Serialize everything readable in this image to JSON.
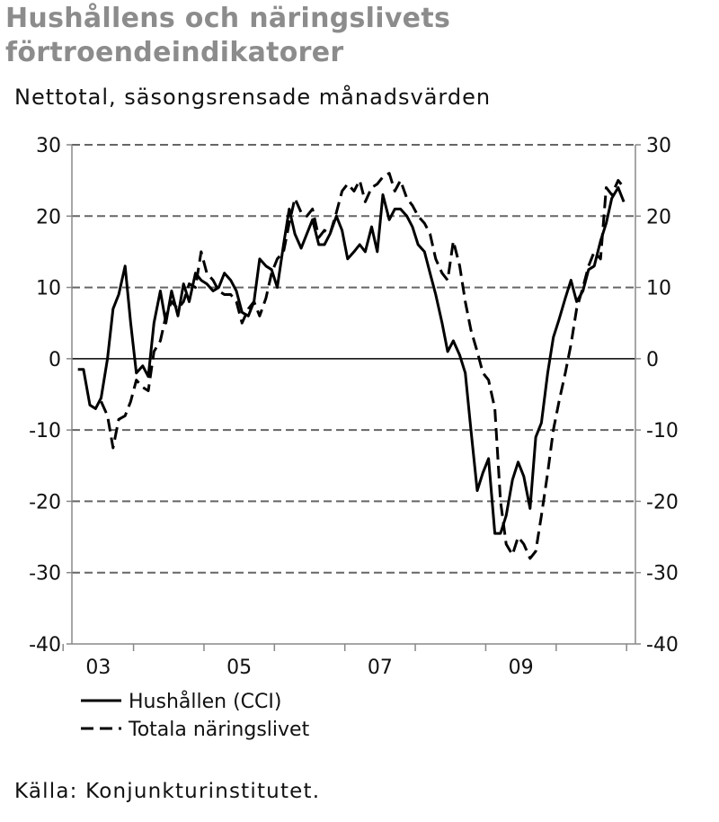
{
  "title_lines": [
    "Hushållens och näringslivets",
    "förtroendeindikatorer"
  ],
  "subtitle": "Nettotal, säsongsrensade månadsvärden",
  "source": "Källa: Konjunkturinstitutet.",
  "chart_data": {
    "type": "line",
    "title": "Hushållens och näringslivets förtroendeindikatorer",
    "subtitle": "Nettotal, säsongsrensade månadsvärden",
    "xlabel": "",
    "ylabel": "",
    "ylim": [
      -40,
      30
    ],
    "yticks": [
      -40,
      -30,
      -20,
      -10,
      0,
      10,
      20,
      30
    ],
    "xlim": [
      2002.625,
      2010.625
    ],
    "xticks": [
      {
        "x": 2003.0,
        "label": "03"
      },
      {
        "x": 2005.0,
        "label": "05"
      },
      {
        "x": 2007.0,
        "label": "07"
      },
      {
        "x": 2009.0,
        "label": "09"
      }
    ],
    "grid": "horizontal dashed",
    "legend_position": "bottom-left",
    "series": [
      {
        "name": "Hushållen (CCI)",
        "style": "solid",
        "color": "#000000",
        "points": [
          [
            2002.71,
            -1.5
          ],
          [
            2002.79,
            -1.5
          ],
          [
            2002.88,
            -6.5
          ],
          [
            2002.96,
            -7.0
          ],
          [
            2003.04,
            -5.5
          ],
          [
            2003.13,
            0.0
          ],
          [
            2003.21,
            7.0
          ],
          [
            2003.29,
            9.0
          ],
          [
            2003.38,
            13.0
          ],
          [
            2003.46,
            5.0
          ],
          [
            2003.54,
            -2.0
          ],
          [
            2003.63,
            -1.0
          ],
          [
            2003.71,
            -2.5
          ],
          [
            2003.79,
            5.0
          ],
          [
            2003.88,
            9.5
          ],
          [
            2003.96,
            5.0
          ],
          [
            2004.04,
            9.5
          ],
          [
            2004.13,
            6.0
          ],
          [
            2004.21,
            10.5
          ],
          [
            2004.29,
            8.0
          ],
          [
            2004.38,
            12.0
          ],
          [
            2004.46,
            11.0
          ],
          [
            2004.54,
            10.5
          ],
          [
            2004.63,
            9.5
          ],
          [
            2004.71,
            10.0
          ],
          [
            2004.79,
            12.0
          ],
          [
            2004.88,
            11.0
          ],
          [
            2004.96,
            9.5
          ],
          [
            2005.04,
            6.5
          ],
          [
            2005.13,
            6.0
          ],
          [
            2005.21,
            8.0
          ],
          [
            2005.29,
            14.0
          ],
          [
            2005.38,
            13.0
          ],
          [
            2005.46,
            12.5
          ],
          [
            2005.54,
            10.0
          ],
          [
            2005.63,
            16.0
          ],
          [
            2005.71,
            21.0
          ],
          [
            2005.79,
            17.5
          ],
          [
            2005.88,
            15.5
          ],
          [
            2005.96,
            17.5
          ],
          [
            2006.04,
            19.5
          ],
          [
            2006.13,
            16.0
          ],
          [
            2006.21,
            16.0
          ],
          [
            2006.29,
            17.5
          ],
          [
            2006.38,
            20.0
          ],
          [
            2006.46,
            18.0
          ],
          [
            2006.54,
            14.0
          ],
          [
            2006.63,
            15.0
          ],
          [
            2006.71,
            16.0
          ],
          [
            2006.79,
            15.0
          ],
          [
            2006.88,
            18.5
          ],
          [
            2006.96,
            15.0
          ],
          [
            2007.04,
            23.0
          ],
          [
            2007.13,
            19.5
          ],
          [
            2007.21,
            21.0
          ],
          [
            2007.29,
            21.0
          ],
          [
            2007.38,
            20.0
          ],
          [
            2007.46,
            18.5
          ],
          [
            2007.54,
            16.0
          ],
          [
            2007.63,
            15.0
          ],
          [
            2007.71,
            12.0
          ],
          [
            2007.79,
            9.0
          ],
          [
            2007.88,
            5.0
          ],
          [
            2007.96,
            1.0
          ],
          [
            2008.04,
            2.5
          ],
          [
            2008.13,
            0.5
          ],
          [
            2008.21,
            -2.0
          ],
          [
            2008.29,
            -10.0
          ],
          [
            2008.38,
            -18.5
          ],
          [
            2008.46,
            -16.0
          ],
          [
            2008.54,
            -14.0
          ],
          [
            2008.63,
            -24.5
          ],
          [
            2008.71,
            -24.5
          ],
          [
            2008.79,
            -22.0
          ],
          [
            2008.88,
            -17.0
          ],
          [
            2008.96,
            -14.5
          ],
          [
            2009.04,
            -16.5
          ],
          [
            2009.13,
            -21.0
          ],
          [
            2009.21,
            -11.0
          ],
          [
            2009.29,
            -9.0
          ],
          [
            2009.38,
            -2.0
          ],
          [
            2009.46,
            3.0
          ],
          [
            2009.54,
            5.5
          ],
          [
            2009.63,
            8.5
          ],
          [
            2009.71,
            11.0
          ],
          [
            2009.79,
            8.0
          ],
          [
            2009.88,
            9.5
          ],
          [
            2009.96,
            12.5
          ],
          [
            2010.04,
            13.0
          ],
          [
            2010.13,
            16.5
          ],
          [
            2010.21,
            19.0
          ],
          [
            2010.29,
            22.5
          ],
          [
            2010.38,
            24.0
          ],
          [
            2010.46,
            22.0
          ]
        ]
      },
      {
        "name": "Totala näringslivet",
        "style": "dashed",
        "color": "#000000",
        "points": [
          [
            2003.04,
            -6.0
          ],
          [
            2003.13,
            -8.0
          ],
          [
            2003.21,
            -12.5
          ],
          [
            2003.29,
            -8.5
          ],
          [
            2003.38,
            -8.0
          ],
          [
            2003.46,
            -6.0
          ],
          [
            2003.54,
            -3.0
          ],
          [
            2003.63,
            -4.0
          ],
          [
            2003.71,
            -4.5
          ],
          [
            2003.79,
            1.0
          ],
          [
            2003.88,
            2.5
          ],
          [
            2003.96,
            6.0
          ],
          [
            2004.04,
            8.0
          ],
          [
            2004.13,
            7.0
          ],
          [
            2004.21,
            8.0
          ],
          [
            2004.29,
            10.5
          ],
          [
            2004.38,
            10.0
          ],
          [
            2004.46,
            15.0
          ],
          [
            2004.54,
            12.0
          ],
          [
            2004.63,
            11.0
          ],
          [
            2004.71,
            9.5
          ],
          [
            2004.79,
            9.0
          ],
          [
            2004.88,
            9.0
          ],
          [
            2004.96,
            8.0
          ],
          [
            2005.04,
            5.0
          ],
          [
            2005.13,
            7.0
          ],
          [
            2005.21,
            8.0
          ],
          [
            2005.29,
            6.0
          ],
          [
            2005.38,
            8.5
          ],
          [
            2005.46,
            12.0
          ],
          [
            2005.54,
            14.0
          ],
          [
            2005.63,
            15.0
          ],
          [
            2005.71,
            19.0
          ],
          [
            2005.79,
            22.5
          ],
          [
            2005.88,
            20.5
          ],
          [
            2005.96,
            20.0
          ],
          [
            2006.04,
            21.0
          ],
          [
            2006.13,
            17.0
          ],
          [
            2006.21,
            18.0
          ],
          [
            2006.29,
            17.5
          ],
          [
            2006.38,
            20.5
          ],
          [
            2006.46,
            23.5
          ],
          [
            2006.54,
            24.5
          ],
          [
            2006.63,
            23.5
          ],
          [
            2006.71,
            25.0
          ],
          [
            2006.79,
            22.0
          ],
          [
            2006.88,
            24.0
          ],
          [
            2006.96,
            24.5
          ],
          [
            2007.04,
            25.5
          ],
          [
            2007.13,
            26.0
          ],
          [
            2007.21,
            23.5
          ],
          [
            2007.29,
            25.0
          ],
          [
            2007.38,
            22.5
          ],
          [
            2007.46,
            21.5
          ],
          [
            2007.54,
            20.0
          ],
          [
            2007.63,
            19.0
          ],
          [
            2007.71,
            17.5
          ],
          [
            2007.79,
            14.0
          ],
          [
            2007.88,
            12.0
          ],
          [
            2007.96,
            11.0
          ],
          [
            2008.04,
            16.5
          ],
          [
            2008.13,
            13.0
          ],
          [
            2008.21,
            8.0
          ],
          [
            2008.29,
            4.0
          ],
          [
            2008.38,
            1.0
          ],
          [
            2008.46,
            -2.0
          ],
          [
            2008.54,
            -3.0
          ],
          [
            2008.63,
            -7.0
          ],
          [
            2008.71,
            -20.0
          ],
          [
            2008.79,
            -26.0
          ],
          [
            2008.88,
            -27.5
          ],
          [
            2008.96,
            -25.0
          ],
          [
            2009.04,
            -26.0
          ],
          [
            2009.13,
            -28.0
          ],
          [
            2009.21,
            -27.0
          ],
          [
            2009.29,
            -22.0
          ],
          [
            2009.38,
            -16.0
          ],
          [
            2009.46,
            -10.0
          ],
          [
            2009.54,
            -6.0
          ],
          [
            2009.63,
            -2.0
          ],
          [
            2009.71,
            2.0
          ],
          [
            2009.79,
            7.0
          ],
          [
            2009.88,
            10.0
          ],
          [
            2009.96,
            13.0
          ],
          [
            2010.04,
            15.0
          ],
          [
            2010.13,
            14.0
          ],
          [
            2010.21,
            24.0
          ],
          [
            2010.29,
            23.0
          ],
          [
            2010.38,
            25.0
          ],
          [
            2010.46,
            24.0
          ]
        ]
      }
    ]
  }
}
